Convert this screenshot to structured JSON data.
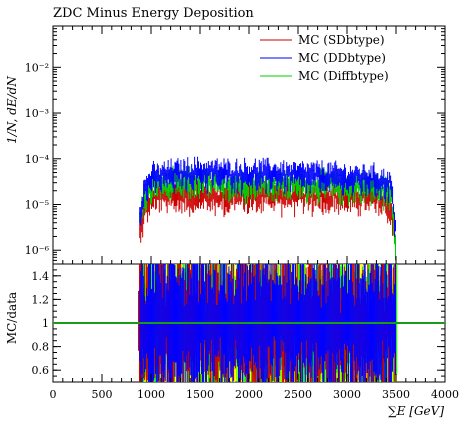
{
  "chart_data": [
    {
      "type": "line",
      "title": "ZDC Minus Energy Deposition",
      "ylabel": "1/N, dE/dN",
      "yscale": "log",
      "xlim": [
        0,
        4000
      ],
      "ylim": [
        5e-07,
        0.08
      ],
      "y_ticks": [
        {
          "value": 0.01,
          "label": "10⁻²"
        },
        {
          "value": 0.001,
          "label": "10⁻³"
        },
        {
          "value": 0.0001,
          "label": "10⁻⁴"
        },
        {
          "value": 1e-05,
          "label": "10⁻⁵"
        },
        {
          "value": 1e-06,
          "label": "10⁻⁶"
        }
      ],
      "legend_position": "top-right",
      "grid": false,
      "series": [
        {
          "name": "MC (SDbtype)",
          "color": "#cc0000",
          "x": [
            875,
            925,
            1000,
            1250,
            1500,
            1750,
            2000,
            2250,
            2500,
            2750,
            3000,
            3250,
            3450,
            3500
          ],
          "values": [
            2e-06,
            7e-06,
            1.5e-05,
            1.7e-05,
            1.7e-05,
            1.6e-05,
            1.8e-05,
            1.8e-05,
            1.7e-05,
            1.6e-05,
            1.6e-05,
            1.5e-05,
            1e-05,
            1e-06
          ]
        },
        {
          "name": "MC (DDbtype)",
          "color": "#0000ff",
          "x": [
            875,
            925,
            1000,
            1250,
            1500,
            1750,
            2000,
            2250,
            2500,
            2750,
            3000,
            3250,
            3450,
            3500
          ],
          "values": [
            5e-06,
            2e-05,
            4e-05,
            5e-05,
            5.5e-05,
            5e-05,
            5e-05,
            5e-05,
            4.5e-05,
            4.5e-05,
            4e-05,
            4e-05,
            3e-05,
            2e-06
          ]
        },
        {
          "name": "MC (Diffbtype)",
          "color": "#00cc00",
          "x": [
            875,
            925,
            1000,
            1250,
            1500,
            1750,
            2000,
            2250,
            2500,
            2750,
            3000,
            3250,
            3450,
            3500
          ],
          "values": [
            4e-06,
            1.5e-05,
            2.8e-05,
            3.2e-05,
            3.3e-05,
            3e-05,
            3.2e-05,
            3.2e-05,
            3e-05,
            3e-05,
            2.8e-05,
            2.7e-05,
            2e-05,
            1.5e-06
          ]
        }
      ]
    },
    {
      "type": "line",
      "ylabel": "MC/data",
      "xlabel": "∑E [GeV]",
      "xlim": [
        0,
        4000
      ],
      "ylim": [
        0.5,
        1.5
      ],
      "x_ticks": [
        0,
        500,
        1000,
        1500,
        2000,
        2500,
        3000,
        3500,
        4000
      ],
      "y_ticks": [
        0.6,
        0.8,
        1,
        1.2,
        1.4
      ],
      "reference_value": 1,
      "band_color": "#ffff00",
      "band_x_range": [
        875,
        3500
      ],
      "series": [
        {
          "name": "MC (SDbtype)",
          "color": "#cc0000"
        },
        {
          "name": "MC (DDbtype)",
          "color": "#0000ff"
        },
        {
          "name": "MC (Diffbtype)",
          "color": "#00ff00"
        }
      ]
    }
  ]
}
